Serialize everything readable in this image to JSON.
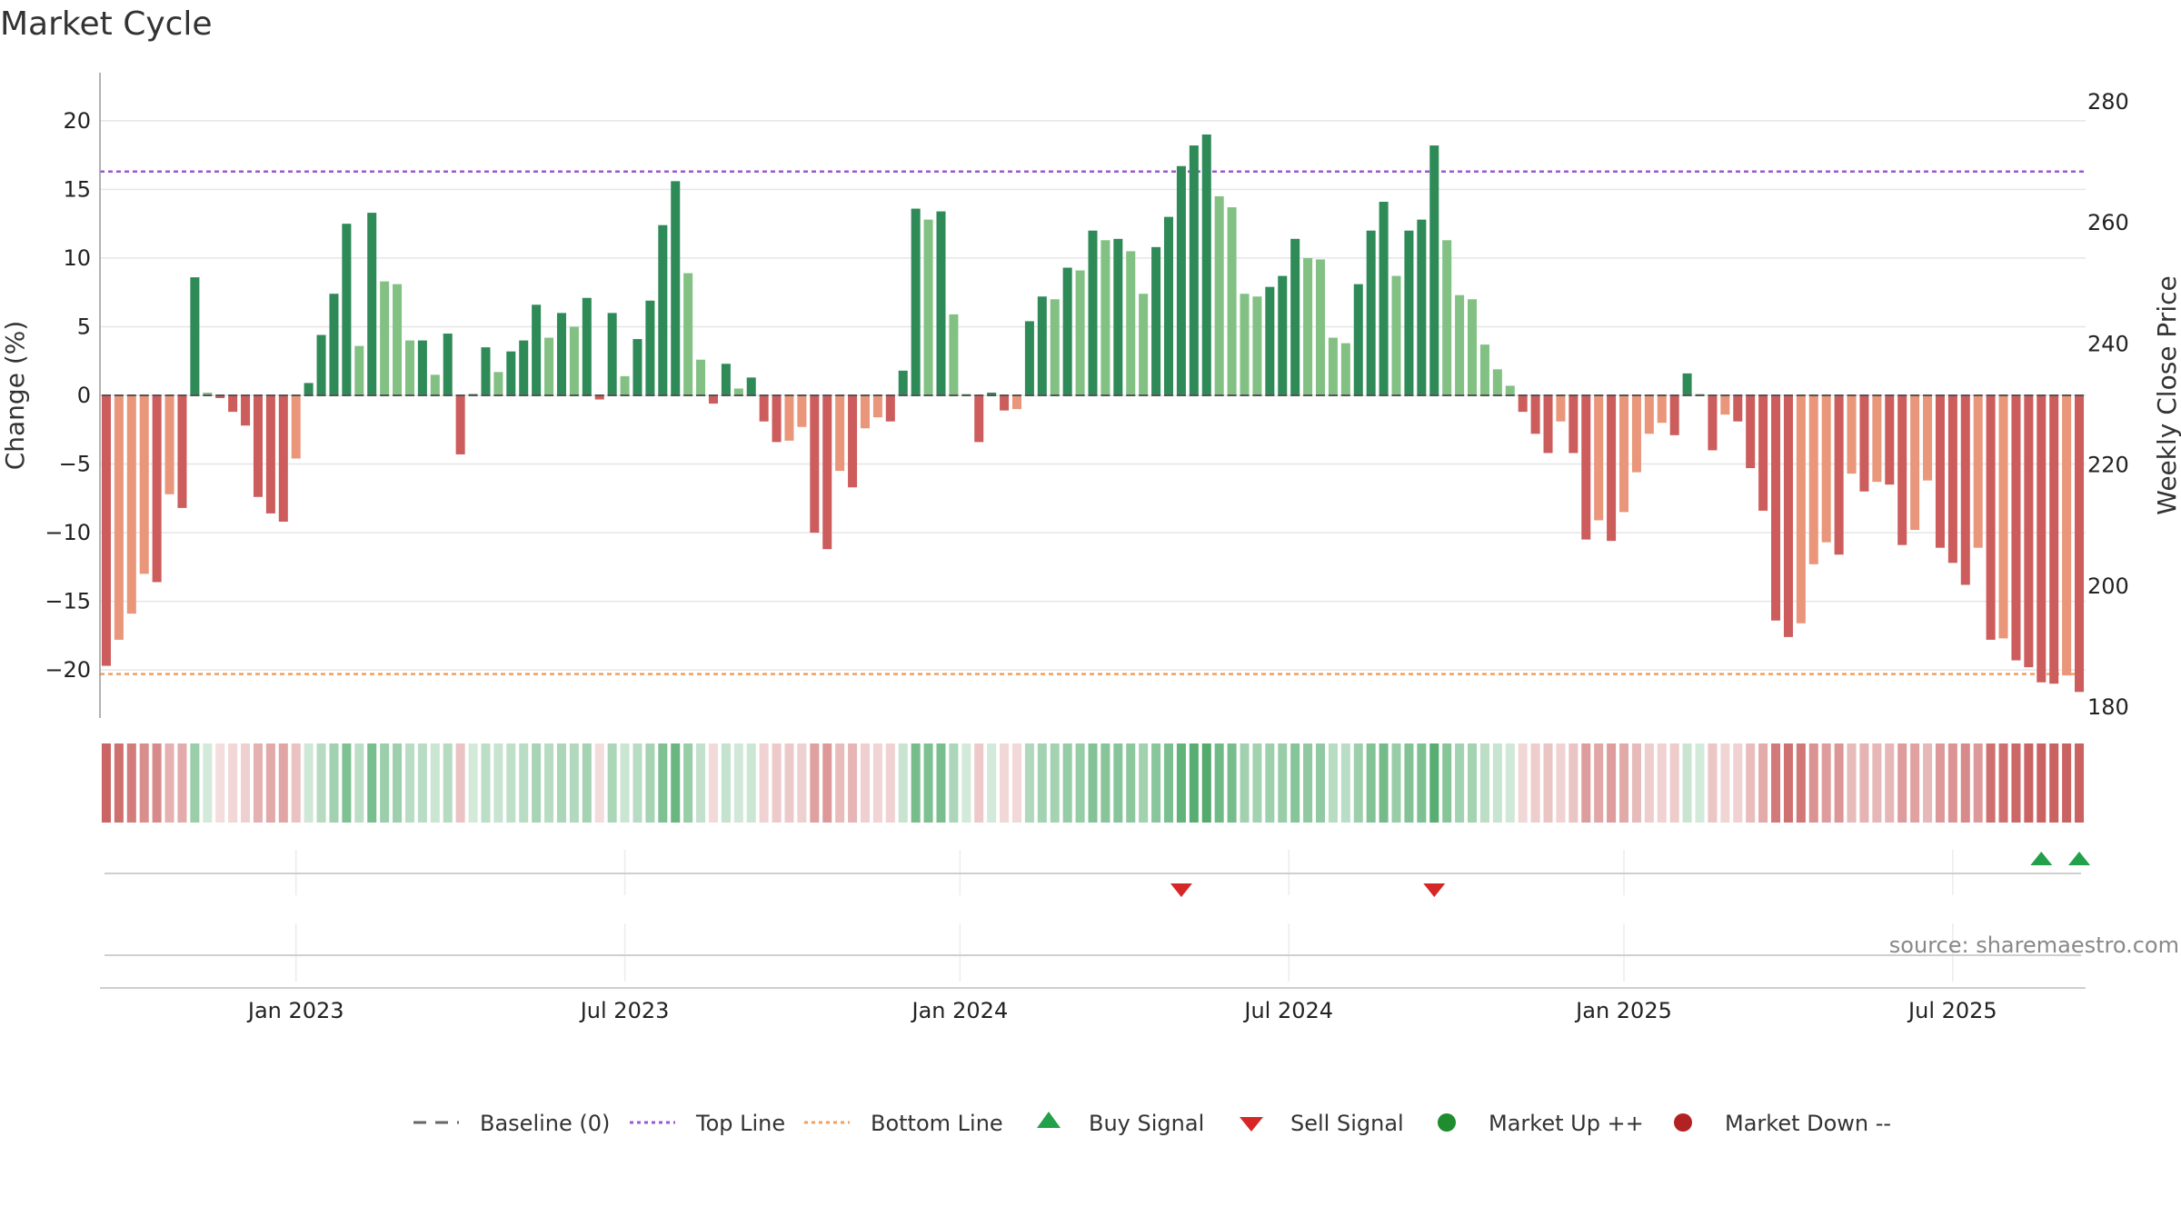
{
  "chart_data": {
    "type": "bar",
    "title": "Market Cycle",
    "ylabel_left": "Change (%)",
    "ylabel_right": "Weekly Close Price",
    "ylim_left": [
      -23.5,
      23.5
    ],
    "ylim_right": [
      180,
      280
    ],
    "yticks_left": [
      {
        "value": 20,
        "label": "20"
      },
      {
        "value": 15,
        "label": "15"
      },
      {
        "value": 10,
        "label": "10"
      },
      {
        "value": 5,
        "label": "5"
      },
      {
        "value": 0,
        "label": "0"
      },
      {
        "value": -5,
        "label": "−5"
      },
      {
        "value": -10,
        "label": "−10"
      },
      {
        "value": -15,
        "label": "−15"
      },
      {
        "value": -20,
        "label": "−20"
      }
    ],
    "yticks_right": [
      {
        "value": 280,
        "label": "280"
      },
      {
        "value": 260,
        "label": "260"
      },
      {
        "value": 240,
        "label": "240"
      },
      {
        "value": 220,
        "label": "220"
      },
      {
        "value": 200,
        "label": "200"
      },
      {
        "value": 180,
        "label": "180"
      }
    ],
    "xticks": [
      {
        "index": 15,
        "label": "Jan 2023"
      },
      {
        "index": 41,
        "label": "Jul 2023"
      },
      {
        "index": 67.5,
        "label": "Jan 2024"
      },
      {
        "index": 93.5,
        "label": "Jul 2024"
      },
      {
        "index": 120,
        "label": "Jan 2025"
      },
      {
        "index": 146,
        "label": "Jul 2025"
      }
    ],
    "top_line": 16.3,
    "bottom_line": -20.3,
    "grid": true,
    "values": [
      -19.7,
      -17.8,
      -15.9,
      -13.0,
      -13.6,
      -7.2,
      -8.2,
      8.6,
      0.2,
      -0.2,
      -1.2,
      -2.2,
      -7.4,
      -8.6,
      -9.2,
      -4.6,
      0.9,
      4.4,
      7.4,
      12.5,
      3.6,
      13.3,
      8.3,
      8.1,
      4.0,
      4.0,
      1.5,
      4.5,
      -4.3,
      0.1,
      3.5,
      1.7,
      3.2,
      4.0,
      6.6,
      4.2,
      6.0,
      5.0,
      7.1,
      -0.3,
      6.0,
      1.4,
      4.1,
      6.9,
      12.4,
      15.6,
      8.9,
      2.6,
      -0.6,
      2.3,
      0.5,
      1.3,
      -1.9,
      -3.4,
      -3.3,
      -2.3,
      -10.0,
      -11.2,
      -5.5,
      -6.7,
      -2.4,
      -1.6,
      -1.9,
      1.8,
      13.6,
      12.8,
      13.4,
      5.9,
      0.1,
      -3.4,
      0.2,
      -1.1,
      -1.0,
      5.4,
      7.2,
      7.0,
      9.3,
      9.1,
      12.0,
      11.3,
      11.4,
      10.5,
      7.4,
      10.8,
      13.0,
      16.7,
      18.2,
      19.0,
      14.5,
      13.7,
      7.4,
      7.2,
      7.9,
      8.7,
      11.4,
      10.0,
      9.9,
      4.2,
      3.8,
      8.1,
      12.0,
      14.1,
      8.7,
      12.0,
      12.8,
      18.2,
      11.3,
      7.3,
      7.0,
      3.7,
      1.9,
      0.7,
      -1.2,
      -2.8,
      -4.2,
      -1.9,
      -4.2,
      -10.5,
      -9.1,
      -10.6,
      -8.5,
      -5.6,
      -2.8,
      -2.0,
      -2.9,
      1.6,
      0.1,
      -4.0,
      -1.4,
      -1.9,
      -5.3,
      -8.4,
      -16.4,
      -17.6,
      -16.6,
      -12.3,
      -10.7,
      -11.6,
      -5.7,
      -7.0,
      -6.3,
      -6.5,
      -10.9,
      -9.8,
      -6.2,
      -11.1,
      -12.2,
      -13.8,
      -11.1,
      -17.8,
      -17.7,
      -19.3,
      -19.8,
      -20.9,
      -21.0,
      -20.4,
      -21.6
    ],
    "buy_signals": [
      153,
      156
    ],
    "sell_signals": [
      85,
      105
    ],
    "source": "source: sharemaestro.com",
    "legend": [
      {
        "label": "Baseline (0)",
        "symbol": "dash",
        "color": "#666666"
      },
      {
        "label": "Top Line",
        "symbol": "dotted",
        "color": "#9b59d0"
      },
      {
        "label": "Bottom Line",
        "symbol": "dotted",
        "color": "#f0a060"
      },
      {
        "label": "Buy Signal",
        "symbol": "triangle-up",
        "color": "#22a04a"
      },
      {
        "label": "Sell Signal",
        "symbol": "triangle-down",
        "color": "#d62728"
      },
      {
        "label": "Market Up ++",
        "symbol": "circle",
        "color": "#1e8c2f"
      },
      {
        "label": "Market Down --",
        "symbol": "circle",
        "color": "#b22222"
      }
    ]
  }
}
